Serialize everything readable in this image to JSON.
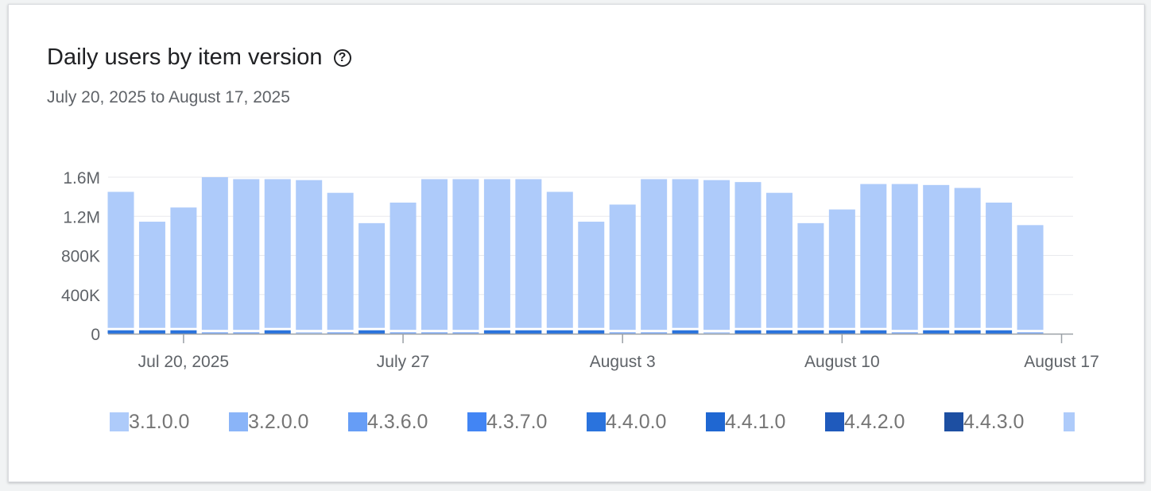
{
  "header": {
    "title": "Daily users by item version",
    "subtitle": "July 20, 2025 to August 17, 2025",
    "help_icon": "help-circle-icon"
  },
  "chart_data": {
    "type": "bar",
    "stacked": true,
    "title": "Daily users by item version",
    "x": [
      "2025-07-18",
      "2025-07-19",
      "2025-07-20",
      "2025-07-21",
      "2025-07-22",
      "2025-07-23",
      "2025-07-24",
      "2025-07-25",
      "2025-07-26",
      "2025-07-27",
      "2025-07-28",
      "2025-07-29",
      "2025-07-30",
      "2025-07-31",
      "2025-08-01",
      "2025-08-02",
      "2025-08-03",
      "2025-08-04",
      "2025-08-05",
      "2025-08-06",
      "2025-08-07",
      "2025-08-08",
      "2025-08-09",
      "2025-08-10",
      "2025-08-11",
      "2025-08-12",
      "2025-08-13",
      "2025-08-14",
      "2025-08-15",
      "2025-08-16"
    ],
    "x_ticks": [
      {
        "date": "2025-07-20",
        "label": "Jul 20, 2025"
      },
      {
        "date": "2025-07-27",
        "label": "July 27"
      },
      {
        "date": "2025-08-03",
        "label": "August 3"
      },
      {
        "date": "2025-08-10",
        "label": "August 10"
      },
      {
        "date": "2025-08-17",
        "label": "August 17"
      }
    ],
    "y_ticks": [
      {
        "value": 0,
        "label": "0"
      },
      {
        "value": 400000,
        "label": "400K"
      },
      {
        "value": 800000,
        "label": "800K"
      },
      {
        "value": 1200000,
        "label": "1.2M"
      },
      {
        "value": 1600000,
        "label": "1.6M"
      }
    ],
    "ylim": [
      0,
      1600000
    ],
    "grid": true,
    "legend_position": "bottom",
    "totals": [
      1450000,
      1145000,
      1290000,
      1600000,
      1580000,
      1580000,
      1570000,
      1440000,
      1130000,
      1340000,
      1580000,
      1580000,
      1580000,
      1580000,
      1450000,
      1145000,
      1320000,
      1580000,
      1580000,
      1570000,
      1550000,
      1440000,
      1130000,
      1270000,
      1530000,
      1530000,
      1520000,
      1490000,
      1340000,
      1110000
    ],
    "bottom_segment": {
      "versions": [
        "4.4.0.0",
        "4.4.0.0",
        "4.4.0.0",
        "3.2.0.0",
        "3.2.0.0",
        "4.4.0.0",
        "3.1.0.0",
        "3.2.0.0",
        "4.4.0.0",
        "3.2.0.0",
        "3.2.0.0",
        "3.2.0.0",
        "4.4.0.0",
        "4.4.0.0",
        "4.4.0.0",
        "4.4.0.0",
        "3.2.0.0",
        "3.2.0.0",
        "4.4.0.0",
        "3.1.0.0",
        "4.4.0.0",
        "4.4.0.0",
        "4.4.0.0",
        "4.4.0.0",
        "4.4.0.0",
        "3.2.0.0",
        "4.4.0.0",
        "4.4.0.0",
        "4.4.0.0",
        "3.2.0.0"
      ],
      "values": [
        35000,
        35000,
        35000,
        15000,
        15000,
        35000,
        15000,
        15000,
        35000,
        15000,
        15000,
        15000,
        35000,
        35000,
        35000,
        35000,
        15000,
        15000,
        35000,
        15000,
        35000,
        35000,
        35000,
        35000,
        35000,
        15000,
        35000,
        35000,
        35000,
        15000
      ]
    },
    "series": [
      {
        "name": "3.1.0.0",
        "color": "#aecbfa"
      },
      {
        "name": "3.2.0.0",
        "color": "#8ab4f8"
      },
      {
        "name": "4.3.6.0",
        "color": "#669df6"
      },
      {
        "name": "4.3.7.0",
        "color": "#4285f4"
      },
      {
        "name": "4.4.0.0",
        "color": "#2a73dd"
      },
      {
        "name": "4.4.1.0",
        "color": "#1f67d2"
      },
      {
        "name": "4.4.2.0",
        "color": "#1f5abc"
      },
      {
        "name": "4.4.3.0",
        "color": "#1d4fa2"
      },
      {
        "name": "",
        "color": "#aecbfa"
      }
    ]
  }
}
